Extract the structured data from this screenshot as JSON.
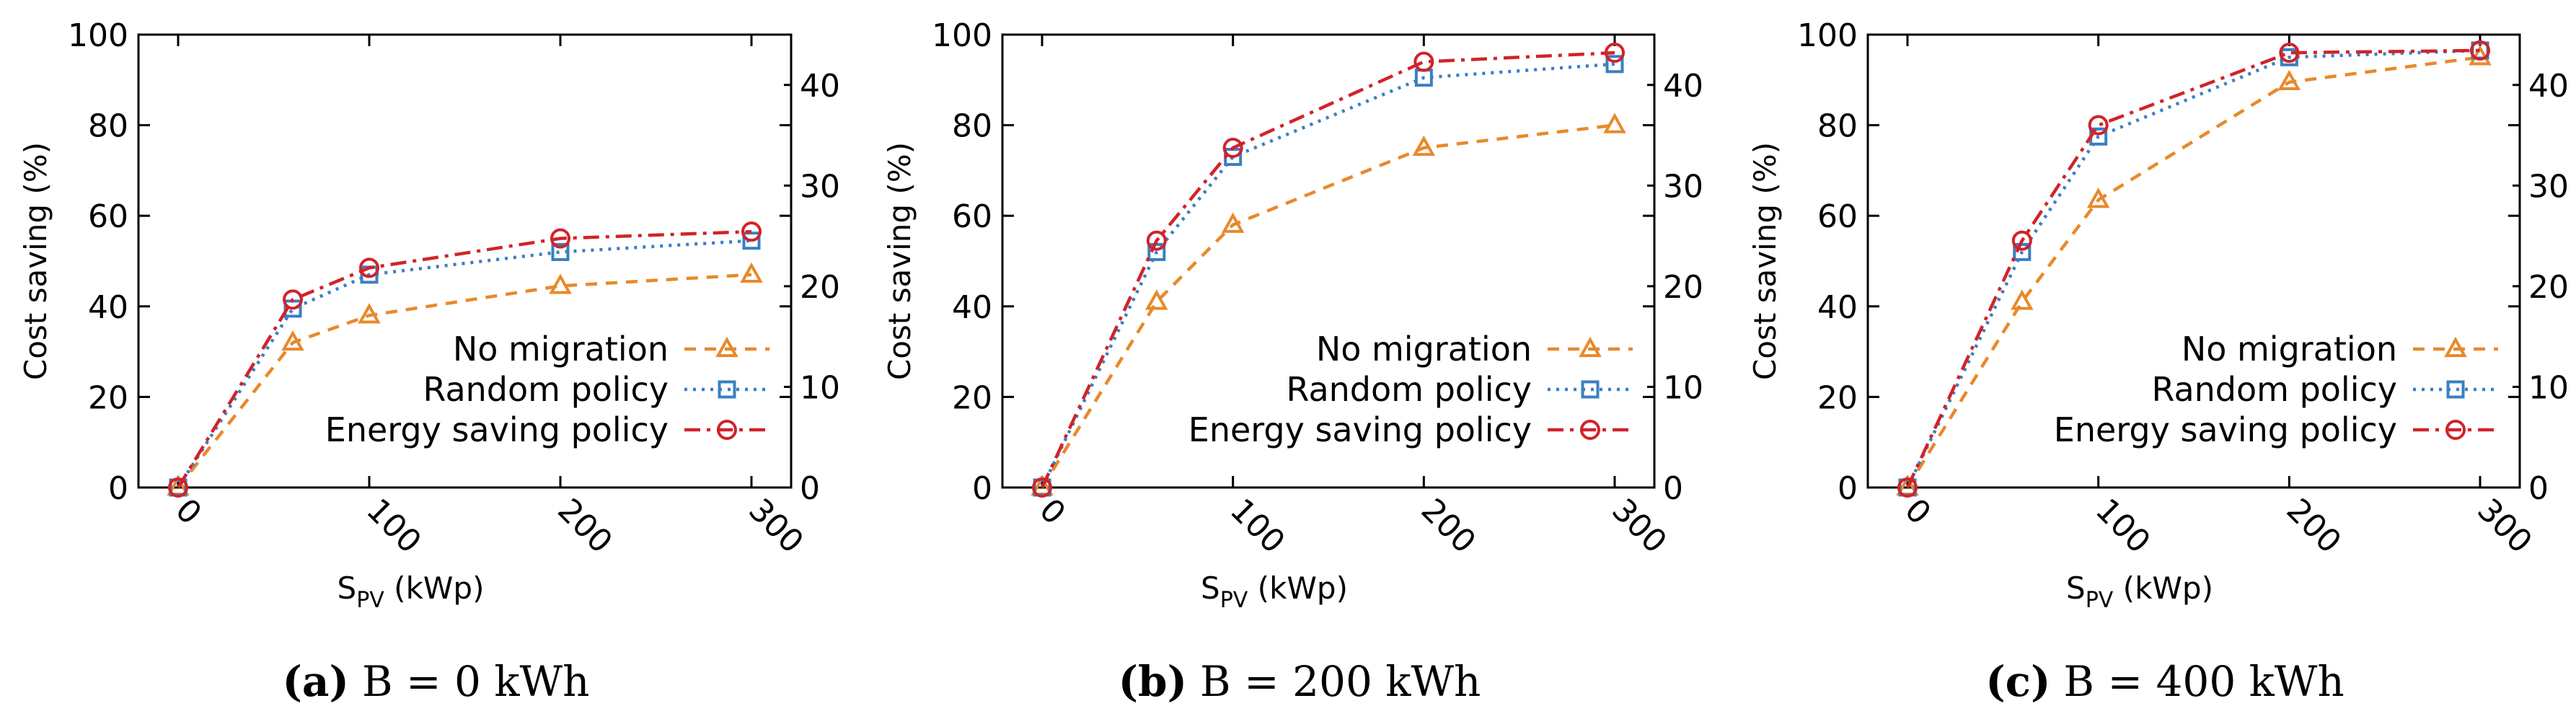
{
  "colors": {
    "no_migration": "#e8892b",
    "random_policy": "#3a7fc2",
    "energy_saving_policy": "#d1232a",
    "axis": "#000000"
  },
  "chart_data": [
    {
      "type": "line",
      "panel": "a",
      "caption": {
        "letter": "(a)",
        "text": "B = 0 kWh"
      },
      "xlabel": {
        "base": "S",
        "sub": "PV",
        "unit": " (kWp)"
      },
      "ylabel": "Cost saving (%)",
      "xlim": [
        0,
        300
      ],
      "ylim": [
        0,
        100
      ],
      "y2lim": [
        0,
        45
      ],
      "xticks": [
        "0",
        "100",
        "200",
        "300"
      ],
      "yticks": [
        "0",
        "20",
        "40",
        "60",
        "80",
        "100"
      ],
      "y2ticks": [
        "0",
        "10",
        "20",
        "30",
        "40"
      ],
      "x": [
        0,
        60,
        100,
        200,
        300
      ],
      "series": [
        {
          "name": "No migration",
          "key": "no_migration",
          "marker": "triangle",
          "dash": "dashed",
          "values": [
            0,
            32,
            38,
            44.5,
            47
          ]
        },
        {
          "name": "Random policy",
          "key": "random_policy",
          "marker": "square",
          "dash": "dotted",
          "values": [
            0,
            39.5,
            47,
            52,
            54.5
          ]
        },
        {
          "name": "Energy saving policy",
          "key": "energy_saving_policy",
          "marker": "circle",
          "dash": "dashdot",
          "values": [
            0,
            41.5,
            48.5,
            55,
            56.5
          ]
        }
      ]
    },
    {
      "type": "line",
      "panel": "b",
      "caption": {
        "letter": "(b)",
        "text": "B = 200 kWh"
      },
      "xlabel": {
        "base": "S",
        "sub": "PV",
        "unit": " (kWp)"
      },
      "ylabel": "Cost saving (%)",
      "xlim": [
        0,
        300
      ],
      "ylim": [
        0,
        100
      ],
      "y2lim": [
        0,
        45
      ],
      "xticks": [
        "0",
        "100",
        "200",
        "300"
      ],
      "yticks": [
        "0",
        "20",
        "40",
        "60",
        "80",
        "100"
      ],
      "y2ticks": [
        "0",
        "10",
        "20",
        "30",
        "40"
      ],
      "x": [
        0,
        60,
        100,
        200,
        300
      ],
      "series": [
        {
          "name": "No migration",
          "key": "no_migration",
          "marker": "triangle",
          "dash": "dashed",
          "values": [
            0,
            41,
            58,
            75,
            80
          ]
        },
        {
          "name": "Random policy",
          "key": "random_policy",
          "marker": "square",
          "dash": "dotted",
          "values": [
            0,
            52,
            73,
            90.5,
            93.5
          ]
        },
        {
          "name": "Energy saving policy",
          "key": "energy_saving_policy",
          "marker": "circle",
          "dash": "dashdot",
          "values": [
            0,
            54.5,
            75,
            94,
            96
          ]
        }
      ]
    },
    {
      "type": "line",
      "panel": "c",
      "caption": {
        "letter": "(c)",
        "text": "B = 400 kWh"
      },
      "xlabel": {
        "base": "S",
        "sub": "PV",
        "unit": " (kWp)"
      },
      "ylabel": "Cost saving (%)",
      "xlim": [
        0,
        300
      ],
      "ylim": [
        0,
        100
      ],
      "y2lim": [
        0,
        45
      ],
      "xticks": [
        "0",
        "100",
        "200",
        "300"
      ],
      "yticks": [
        "0",
        "20",
        "40",
        "60",
        "80",
        "100"
      ],
      "y2ticks": [
        "0",
        "10",
        "20",
        "30",
        "40"
      ],
      "x": [
        0,
        60,
        100,
        200,
        300
      ],
      "series": [
        {
          "name": "No migration",
          "key": "no_migration",
          "marker": "triangle",
          "dash": "dashed",
          "values": [
            0,
            41,
            63.5,
            89.5,
            95
          ]
        },
        {
          "name": "Random policy",
          "key": "random_policy",
          "marker": "square",
          "dash": "dotted",
          "values": [
            0,
            52,
            77.5,
            95,
            96.5
          ]
        },
        {
          "name": "Energy saving policy",
          "key": "energy_saving_policy",
          "marker": "circle",
          "dash": "dashdot",
          "values": [
            0,
            54.5,
            80,
            96,
            96.5
          ]
        }
      ]
    }
  ]
}
